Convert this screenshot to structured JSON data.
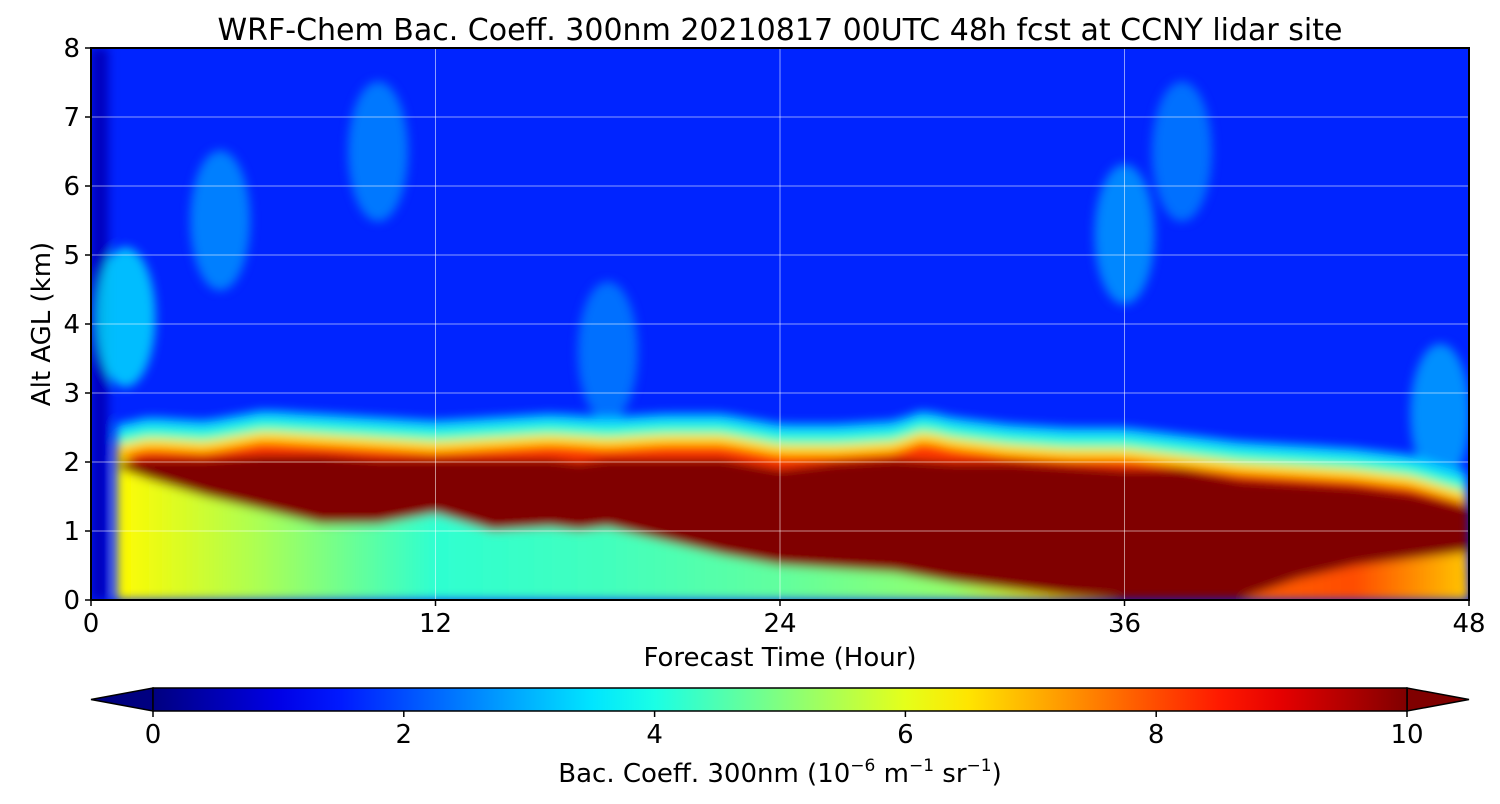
{
  "chart_data": {
    "type": "heatmap",
    "title": "WRF-Chem Bac. Coeff. 300nm  20210817 00UTC 48h fcst at CCNY lidar site",
    "xlabel": "Forecast Time (Hour)",
    "ylabel": "Alt AGL (km)",
    "xlim": [
      0,
      48
    ],
    "ylim": [
      0,
      8
    ],
    "xticks": [
      "0",
      "12",
      "24",
      "36",
      "48"
    ],
    "yticks": [
      "0",
      "1",
      "2",
      "3",
      "4",
      "5",
      "6",
      "7",
      "8"
    ],
    "grid": true,
    "colorbar": {
      "colormap": "jet",
      "range": [
        0,
        10
      ],
      "extend": "both",
      "ticks": [
        "0",
        "2",
        "4",
        "6",
        "8",
        "10"
      ],
      "label_main": "Bac. Coeff. 300nm  (10",
      "label_exp1": "−6",
      "label_mid": " m",
      "label_exp2": "−1",
      "label_mid2": " sr",
      "label_exp3": "−1",
      "label_end": ")"
    },
    "layers": {
      "background_value": 1.6,
      "saturated_core": {
        "value": 10,
        "time": [
          1,
          2,
          4,
          6,
          8,
          10,
          12,
          14,
          16,
          17,
          18,
          20,
          22,
          24,
          26,
          28,
          30,
          32,
          34,
          36,
          38,
          40,
          42,
          44,
          46,
          48
        ],
        "top": [
          2.0,
          2.05,
          2.05,
          2.1,
          2.1,
          2.05,
          2.05,
          2.05,
          2.05,
          2.0,
          2.05,
          2.05,
          2.05,
          1.9,
          2.0,
          2.05,
          2.0,
          2.0,
          1.95,
          1.9,
          1.9,
          1.75,
          1.7,
          1.65,
          1.55,
          1.35
        ],
        "bottom": [
          1.9,
          1.75,
          1.5,
          1.3,
          1.1,
          1.1,
          1.25,
          1.0,
          1.05,
          1.0,
          1.05,
          0.85,
          0.65,
          0.5,
          0.45,
          0.4,
          0.25,
          0.15,
          0.05,
          0.0,
          0.0,
          0.0,
          0.3,
          0.5,
          0.6,
          0.7
        ]
      },
      "aerosol_layer_top": {
        "time": [
          1,
          2,
          4,
          6,
          8,
          10,
          12,
          14,
          16,
          18,
          20,
          22,
          24,
          26,
          28,
          29,
          30,
          32,
          34,
          36,
          38,
          40,
          42,
          44,
          46,
          48
        ],
        "value": [
          2.4,
          2.5,
          2.45,
          2.6,
          2.55,
          2.5,
          2.45,
          2.5,
          2.55,
          2.5,
          2.55,
          2.55,
          2.4,
          2.4,
          2.45,
          2.6,
          2.5,
          2.4,
          2.35,
          2.35,
          2.25,
          2.15,
          2.1,
          2.05,
          1.95,
          1.7
        ]
      },
      "low_level_values": {
        "time": [
          1,
          6,
          12,
          18,
          24,
          30,
          34,
          40,
          44,
          48
        ],
        "value": [
          6.3,
          5.4,
          4.2,
          4.4,
          4.7,
          5.2,
          6.6,
          7.8,
          8.0,
          6.8
        ]
      },
      "plumes": [
        {
          "x": 1.2,
          "y": 4.1,
          "value": 3.6
        },
        {
          "x": 4.5,
          "y": 5.5,
          "value": 2.8
        },
        {
          "x": 10.0,
          "y": 6.5,
          "value": 2.7
        },
        {
          "x": 18.0,
          "y": 3.6,
          "value": 2.6
        },
        {
          "x": 36.0,
          "y": 5.3,
          "value": 2.9
        },
        {
          "x": 38.0,
          "y": 6.5,
          "value": 2.6
        },
        {
          "x": 47.0,
          "y": 2.7,
          "value": 3.0
        }
      ]
    }
  }
}
